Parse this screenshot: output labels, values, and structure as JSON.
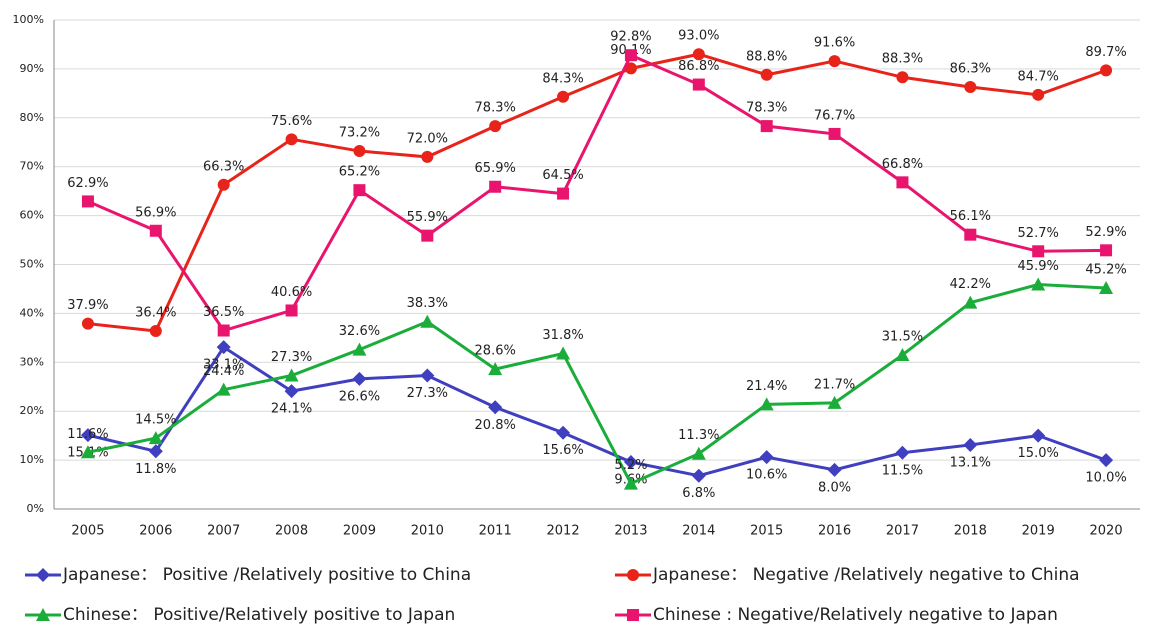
{
  "chart_data": {
    "type": "line",
    "categories": [
      "2005",
      "2006",
      "2007",
      "2008",
      "2009",
      "2010",
      "2011",
      "2012",
      "2013",
      "2014",
      "2015",
      "2016",
      "2017",
      "2018",
      "2019",
      "2020"
    ],
    "ylim": [
      0,
      100
    ],
    "yticks": [
      {
        "value": 0,
        "label": "0%"
      },
      {
        "value": 10,
        "label": "10%"
      },
      {
        "value": 20,
        "label": "20%"
      },
      {
        "value": 30,
        "label": "30%"
      },
      {
        "value": 40,
        "label": "40%"
      },
      {
        "value": 50,
        "label": "50%"
      },
      {
        "value": 60,
        "label": "60%"
      },
      {
        "value": 70,
        "label": "70%"
      },
      {
        "value": 80,
        "label": "80%"
      },
      {
        "value": 90,
        "label": "90%"
      },
      {
        "value": 100,
        "label": "100%"
      }
    ],
    "series": [
      {
        "name": "Japanese： Positive /Relatively positive to China",
        "color": "#3f3fbf",
        "marker": "diamond",
        "values": [
          15.1,
          11.8,
          33.1,
          24.1,
          26.6,
          27.3,
          20.8,
          15.6,
          9.6,
          6.8,
          10.6,
          8.0,
          11.5,
          13.1,
          15.0,
          10.0
        ],
        "value_labels": [
          "15.1%",
          "11.8%",
          "33.1%",
          "24.1%",
          "26.6%",
          "27.3%",
          "20.8%",
          "15.6%",
          "9.6%",
          "6.8%",
          "10.6%",
          "8.0%",
          "11.5%",
          "13.1%",
          "15.0%",
          "10.0%"
        ]
      },
      {
        "name": "Japanese： Negative /Relatively negative to China",
        "color": "#e8231a",
        "marker": "circle",
        "values": [
          37.9,
          36.4,
          66.3,
          75.6,
          73.2,
          72.0,
          78.3,
          84.3,
          90.1,
          93.0,
          88.8,
          91.6,
          88.3,
          86.3,
          84.7,
          89.7
        ],
        "value_labels": [
          "37.9%",
          "36.4%",
          "66.3%",
          "75.6%",
          "73.2%",
          "72.0%",
          "78.3%",
          "84.3%",
          "90.1%",
          "93.0%",
          "88.8%",
          "91.6%",
          "88.3%",
          "86.3%",
          "84.7%",
          "89.7%"
        ]
      },
      {
        "name": "Chinese： Positive/Relatively positive to Japan",
        "color": "#1aad3a",
        "marker": "triangle",
        "values": [
          11.6,
          14.5,
          24.4,
          27.3,
          32.6,
          38.3,
          28.6,
          31.8,
          5.2,
          11.3,
          21.4,
          21.7,
          31.5,
          42.2,
          45.9,
          45.2
        ],
        "value_labels": [
          "11.6%",
          "14.5%",
          "24.4%",
          "27.3%",
          "32.6%",
          "38.3%",
          "28.6%",
          "31.8%",
          "5.2%",
          "11.3%",
          "21.4%",
          "21.7%",
          "31.5%",
          "42.2%",
          "45.9%",
          "45.2%"
        ]
      },
      {
        "name": "Chinese : Negative/Relatively negative to Japan",
        "color": "#e8146e",
        "marker": "square",
        "values": [
          62.9,
          56.9,
          36.5,
          40.6,
          65.2,
          55.9,
          65.9,
          64.5,
          92.8,
          86.8,
          78.3,
          76.7,
          66.8,
          56.1,
          52.7,
          52.9
        ],
        "value_labels": [
          "62.9%",
          "56.9%",
          "36.5%",
          "40.6%",
          "65.2%",
          "55.9%",
          "65.9%",
          "64.5%",
          "92.8%",
          "86.8%",
          "78.3%",
          "76.7%",
          "66.8%",
          "56.1%",
          "52.7%",
          "52.9%"
        ]
      }
    ]
  }
}
